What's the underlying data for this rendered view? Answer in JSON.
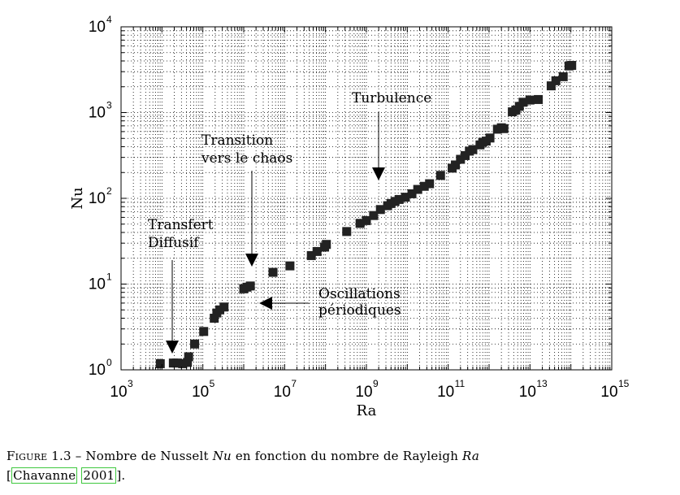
{
  "chart_data": {
    "type": "scatter",
    "xlabel": "Ra",
    "ylabel": "Nu",
    "x_scale": "log",
    "y_scale": "log",
    "xlim": [
      1000,
      1000000000000000.0
    ],
    "ylim": [
      1,
      10000
    ],
    "grid": true,
    "x_ticks": [
      {
        "base": "10",
        "exp": "3",
        "value": 1000.0
      },
      {
        "base": "10",
        "exp": "5",
        "value": 100000.0
      },
      {
        "base": "10",
        "exp": "7",
        "value": 10000000.0
      },
      {
        "base": "10",
        "exp": "9",
        "value": 1000000000.0
      },
      {
        "base": "10",
        "exp": "11",
        "value": 100000000000.0
      },
      {
        "base": "10",
        "exp": "13",
        "value": 10000000000000.0
      },
      {
        "base": "10",
        "exp": "15",
        "value": 1000000000000000.0
      }
    ],
    "y_ticks": [
      {
        "base": "10",
        "exp": "0",
        "value": 1
      },
      {
        "base": "10",
        "exp": "1",
        "value": 10
      },
      {
        "base": "10",
        "exp": "2",
        "value": 100
      },
      {
        "base": "10",
        "exp": "3",
        "value": 1000
      },
      {
        "base": "10",
        "exp": "4",
        "value": 10000
      }
    ],
    "points": [
      {
        "x": 9100.0,
        "y": 1.18
      },
      {
        "x": 19000.0,
        "y": 1.2
      },
      {
        "x": 23000.0,
        "y": 1.2
      },
      {
        "x": 32000.0,
        "y": 1.18
      },
      {
        "x": 42000.0,
        "y": 1.22
      },
      {
        "x": 45000.0,
        "y": 1.42
      },
      {
        "x": 63000.0,
        "y": 2.0
      },
      {
        "x": 105000.0,
        "y": 2.8
      },
      {
        "x": 190000.0,
        "y": 4.0
      },
      {
        "x": 220000.0,
        "y": 4.6
      },
      {
        "x": 260000.0,
        "y": 5.0
      },
      {
        "x": 330000.0,
        "y": 5.4
      },
      {
        "x": 1000000.0,
        "y": 8.8
      },
      {
        "x": 1200000.0,
        "y": 9.2
      },
      {
        "x": 1450000.0,
        "y": 9.5
      },
      {
        "x": 5200000.0,
        "y": 13.7
      },
      {
        "x": 13500000.0,
        "y": 16.3
      },
      {
        "x": 45000000.0,
        "y": 21.5
      },
      {
        "x": 62000000.0,
        "y": 24.0
      },
      {
        "x": 95000000.0,
        "y": 27.0
      },
      {
        "x": 105000000.0,
        "y": 29.0
      },
      {
        "x": 330000000.0,
        "y": 41.0
      },
      {
        "x": 700000000.0,
        "y": 51.0
      },
      {
        "x": 1000000000.0,
        "y": 55.0
      },
      {
        "x": 1500000000.0,
        "y": 63.0
      },
      {
        "x": 2200000000.0,
        "y": 74.0
      },
      {
        "x": 3300000000.0,
        "y": 82.0
      },
      {
        "x": 4000000000.0,
        "y": 87.0
      },
      {
        "x": 5000000000.0,
        "y": 92.0
      },
      {
        "x": 6300000000.0,
        "y": 97.0
      },
      {
        "x": 9000000000.0,
        "y": 103.0
      },
      {
        "x": 13000000000.0,
        "y": 113.0
      },
      {
        "x": 18000000000.0,
        "y": 127.0
      },
      {
        "x": 26000000000.0,
        "y": 138.0
      },
      {
        "x": 35000000000.0,
        "y": 148.0
      },
      {
        "x": 65000000000.0,
        "y": 185.0
      },
      {
        "x": 125000000000.0,
        "y": 225.0
      },
      {
        "x": 150000000000.0,
        "y": 245.0
      },
      {
        "x": 200000000000.0,
        "y": 285.0
      },
      {
        "x": 260000000000.0,
        "y": 315.0
      },
      {
        "x": 330000000000.0,
        "y": 355.0
      },
      {
        "x": 400000000000.0,
        "y": 370.0
      },
      {
        "x": 600000000000.0,
        "y": 420.0
      },
      {
        "x": 700000000000.0,
        "y": 450.0
      },
      {
        "x": 850000000000.0,
        "y": 465.0
      },
      {
        "x": 1050000000000.0,
        "y": 505.0
      },
      {
        "x": 1600000000000.0,
        "y": 640.0
      },
      {
        "x": 2000000000000.0,
        "y": 665.0
      },
      {
        "x": 2300000000000.0,
        "y": 650.0
      },
      {
        "x": 3700000000000.0,
        "y": 1020.0
      },
      {
        "x": 4500000000000.0,
        "y": 1070.0
      },
      {
        "x": 5500000000000.0,
        "y": 1180.0
      },
      {
        "x": 6800000000000.0,
        "y": 1320.0
      },
      {
        "x": 10000000000000.0,
        "y": 1400.0
      },
      {
        "x": 16000000000000.0,
        "y": 1420.0
      },
      {
        "x": 33000000000000.0,
        "y": 2050.0
      },
      {
        "x": 43000000000000.0,
        "y": 2350.0
      },
      {
        "x": 65000000000000.0,
        "y": 2620.0
      },
      {
        "x": 90000000000000.0,
        "y": 3500.0
      },
      {
        "x": 105000000000000.0,
        "y": 3550.0
      }
    ],
    "annotations": [
      {
        "lines": [
          "Turbulence"
        ],
        "arrow": "down"
      },
      {
        "lines": [
          "Transition",
          "vers le chaos"
        ],
        "arrow": "down"
      },
      {
        "lines": [
          "Transfert",
          "Diffusif"
        ],
        "arrow": "down"
      },
      {
        "lines": [
          "Oscillations",
          "périodiques"
        ],
        "arrow": "left"
      }
    ]
  },
  "caption": {
    "label": "Figure 1.3",
    "dash": " – ",
    "text_before": "Nombre de Nusselt ",
    "nu_symbol": "Nu",
    "text_middle": " en fonction du nombre de Rayleigh ",
    "ra_symbol": "Ra",
    "cite_open": "[",
    "cite_author": "Chavanne",
    "cite_year": "2001",
    "cite_close": "]."
  }
}
